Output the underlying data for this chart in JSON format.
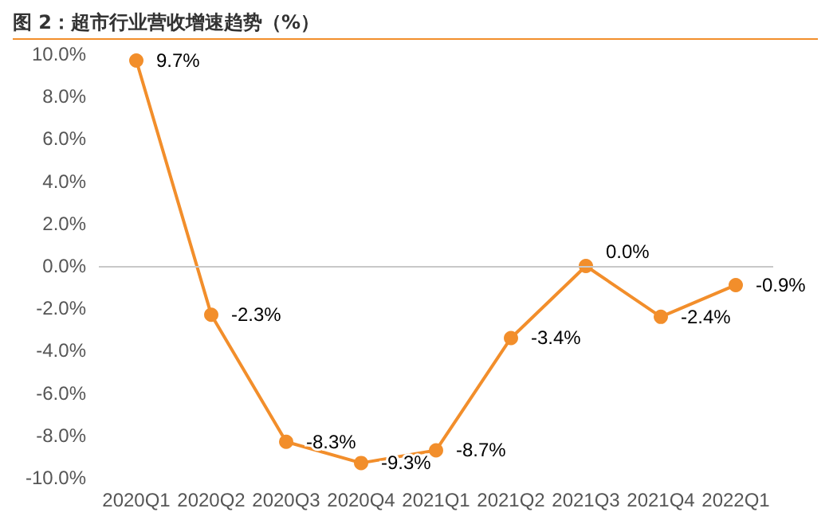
{
  "chart_data": {
    "type": "line",
    "title": "图 2：超市行业营收增速趋势（%）",
    "categories": [
      "2020Q1",
      "2020Q2",
      "2020Q3",
      "2020Q4",
      "2021Q1",
      "2021Q2",
      "2021Q3",
      "2021Q4",
      "2022Q1"
    ],
    "series": [
      {
        "color": "#f28e2b",
        "values": [
          9.7,
          -2.3,
          -8.3,
          -9.3,
          -8.7,
          -3.4,
          0.0,
          -2.4,
          -0.9
        ],
        "value_labels": [
          "9.7%",
          "-2.3%",
          "-8.3%",
          "-9.3%",
          "-8.7%",
          "-3.4%",
          "0.0%",
          "-2.4%",
          "-0.9%"
        ]
      }
    ],
    "ylim": [
      -10,
      10
    ],
    "yticks": [
      {
        "value": -10,
        "label": "-10.0%"
      },
      {
        "value": -8,
        "label": "-8.0%"
      },
      {
        "value": -6,
        "label": "-6.0%"
      },
      {
        "value": -4,
        "label": "-4.0%"
      },
      {
        "value": -2,
        "label": "-2.0%"
      },
      {
        "value": 0,
        "label": "0.0%"
      },
      {
        "value": 2,
        "label": "2.0%"
      },
      {
        "value": 4,
        "label": "4.0%"
      },
      {
        "value": 6,
        "label": "6.0%"
      },
      {
        "value": 8,
        "label": "8.0%"
      },
      {
        "value": 10,
        "label": "10.0%"
      }
    ],
    "ref_lines": [
      {
        "axis": "y",
        "value": 0,
        "label": null,
        "color": "#c8c8c8"
      }
    ],
    "grid": false,
    "marker": "circle",
    "line_style": "solid"
  }
}
